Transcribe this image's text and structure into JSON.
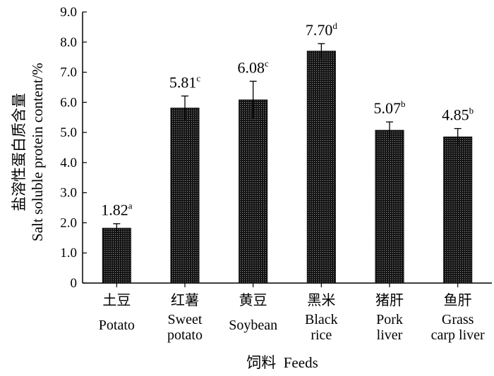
{
  "chart_data": {
    "type": "bar",
    "xlabel": "饲料  Feeds",
    "ylabel_zh": "盐溶性蛋白质含量",
    "ylabel_en": "Salt soluble protein content/%",
    "ylim": [
      0,
      9
    ],
    "yticks": [
      "0",
      "1.0",
      "2.0",
      "3.0",
      "4.0",
      "5.0",
      "6.0",
      "7.0",
      "8.0",
      "9.0"
    ],
    "categories": [
      {
        "zh": "土豆",
        "en": [
          "Potato"
        ]
      },
      {
        "zh": "红薯",
        "en": [
          "Sweet",
          "potato"
        ]
      },
      {
        "zh": "黄豆",
        "en": [
          "Soybean"
        ]
      },
      {
        "zh": "黑米",
        "en": [
          "Black",
          "rice"
        ]
      },
      {
        "zh": "猪肝",
        "en": [
          "Pork",
          "liver"
        ]
      },
      {
        "zh": "鱼肝",
        "en": [
          "Grass",
          "carp liver"
        ]
      }
    ],
    "values": [
      1.82,
      5.81,
      6.08,
      7.7,
      5.07,
      4.85
    ],
    "errors": [
      0.15,
      0.4,
      0.62,
      0.25,
      0.28,
      0.28
    ],
    "value_labels": [
      "1.82",
      "5.81",
      "6.08",
      "7.70",
      "5.07",
      "4.85"
    ],
    "significance": [
      "a",
      "c",
      "c",
      "d",
      "b",
      "b"
    ],
    "bar_fill": "dark dotted pattern",
    "grid": false,
    "legend": "none"
  }
}
